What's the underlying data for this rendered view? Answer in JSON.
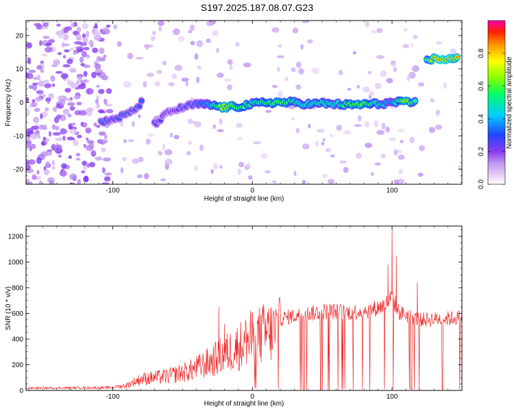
{
  "title": "S197.2025.187.08.07.G23",
  "chart_data": [
    {
      "type": "heatmap",
      "xlabel": "Height of straight line (km)",
      "ylabel": "Frequency (Hz)",
      "xlim": [
        -162,
        150
      ],
      "ylim": [
        -24.5,
        24.5
      ],
      "xticks": [
        -100,
        0,
        100
      ],
      "xtick_labels": [
        "-100",
        "0",
        "100"
      ],
      "yticks": [
        -20,
        -10,
        0,
        10,
        20
      ],
      "ytick_labels": [
        "-20",
        "-10",
        "0",
        "10",
        "20"
      ],
      "colorbar": {
        "label": "Normalized spectral amplitude",
        "range": [
          0,
          1
        ],
        "ticks": [
          0.0,
          0.2,
          0.4,
          0.6,
          0.8
        ],
        "tick_labels": [
          "0.0",
          "0.2",
          "0.4",
          "0.6",
          "0.8"
        ]
      },
      "ridge": [
        {
          "x": -108,
          "y": -6.0,
          "a": 0.35
        },
        {
          "x": -100,
          "y": -5.0,
          "a": 0.3
        },
        {
          "x": -92,
          "y": -4.0,
          "a": 0.35
        },
        {
          "x": -85,
          "y": -2.5,
          "a": 0.3
        },
        {
          "x": -78,
          "y": 0.5,
          "a": 0.35
        },
        {
          "x": -70,
          "y": -6.5,
          "a": 0.3
        },
        {
          "x": -60,
          "y": -3.0,
          "a": 0.25
        },
        {
          "x": -50,
          "y": -1.5,
          "a": 0.3
        },
        {
          "x": -40,
          "y": -0.5,
          "a": 0.35
        },
        {
          "x": -30,
          "y": -0.8,
          "a": 0.5
        },
        {
          "x": -20,
          "y": -1.5,
          "a": 0.85
        },
        {
          "x": -10,
          "y": -1.2,
          "a": 0.7
        },
        {
          "x": 0,
          "y": -0.5,
          "a": 0.6
        },
        {
          "x": 10,
          "y": 0.0,
          "a": 0.65
        },
        {
          "x": 20,
          "y": 0.0,
          "a": 0.75
        },
        {
          "x": 30,
          "y": 0.0,
          "a": 0.6
        },
        {
          "x": 40,
          "y": -0.5,
          "a": 0.55
        },
        {
          "x": 50,
          "y": -0.3,
          "a": 0.6
        },
        {
          "x": 60,
          "y": -0.5,
          "a": 0.55
        },
        {
          "x": 70,
          "y": -0.8,
          "a": 0.7
        },
        {
          "x": 80,
          "y": -0.5,
          "a": 0.75
        },
        {
          "x": 90,
          "y": -0.5,
          "a": 0.55
        },
        {
          "x": 100,
          "y": 0.0,
          "a": 0.45
        },
        {
          "x": 110,
          "y": 0.0,
          "a": 0.85
        },
        {
          "x": 118,
          "y": 0.0,
          "a": 0.5
        },
        {
          "x": 125,
          "y": 13.0,
          "a": 0.7
        },
        {
          "x": 133,
          "y": 13.0,
          "a": 0.95
        },
        {
          "x": 141,
          "y": 13.0,
          "a": 0.9
        },
        {
          "x": 148,
          "y": 13.0,
          "a": 0.85
        }
      ]
    },
    {
      "type": "line",
      "xlabel": "Height of straight line (km)",
      "ylabel": "SNR (10 * v/v)",
      "xlim": [
        -162,
        150
      ],
      "ylim": [
        0,
        1280
      ],
      "xticks": [
        -100,
        0,
        100
      ],
      "xtick_labels": [
        "-100",
        "0",
        "100"
      ],
      "yticks": [
        0,
        200,
        400,
        600,
        800,
        1000,
        1200
      ],
      "ytick_labels": [
        "0",
        "200",
        "400",
        "600",
        "800",
        "1000",
        "1200"
      ],
      "series": [
        {
          "color": "#ee2222",
          "envelope": [
            {
              "x": -162,
              "y": 20
            },
            {
              "x": -100,
              "y": 25
            },
            {
              "x": -90,
              "y": 50
            },
            {
              "x": -80,
              "y": 110
            },
            {
              "x": -60,
              "y": 140
            },
            {
              "x": -45,
              "y": 190
            },
            {
              "x": -30,
              "y": 280
            },
            {
              "x": -20,
              "y": 350
            },
            {
              "x": -10,
              "y": 430
            },
            {
              "x": 0,
              "y": 510
            },
            {
              "x": 10,
              "y": 560
            },
            {
              "x": 25,
              "y": 600
            },
            {
              "x": 40,
              "y": 630
            },
            {
              "x": 55,
              "y": 650
            },
            {
              "x": 70,
              "y": 640
            },
            {
              "x": 85,
              "y": 660
            },
            {
              "x": 95,
              "y": 700
            },
            {
              "x": 100,
              "y": 760
            },
            {
              "x": 105,
              "y": 640
            },
            {
              "x": 120,
              "y": 580
            },
            {
              "x": 140,
              "y": 590
            },
            {
              "x": 150,
              "y": 600
            }
          ],
          "spikes": [
            {
              "x": -24,
              "y": 650
            },
            {
              "x": -20,
              "y": 520
            },
            {
              "x": 100,
              "y": 1280
            },
            {
              "x": 103,
              "y": 1050
            },
            {
              "x": 97,
              "y": 980
            },
            {
              "x": 118,
              "y": 840
            }
          ]
        }
      ]
    }
  ]
}
